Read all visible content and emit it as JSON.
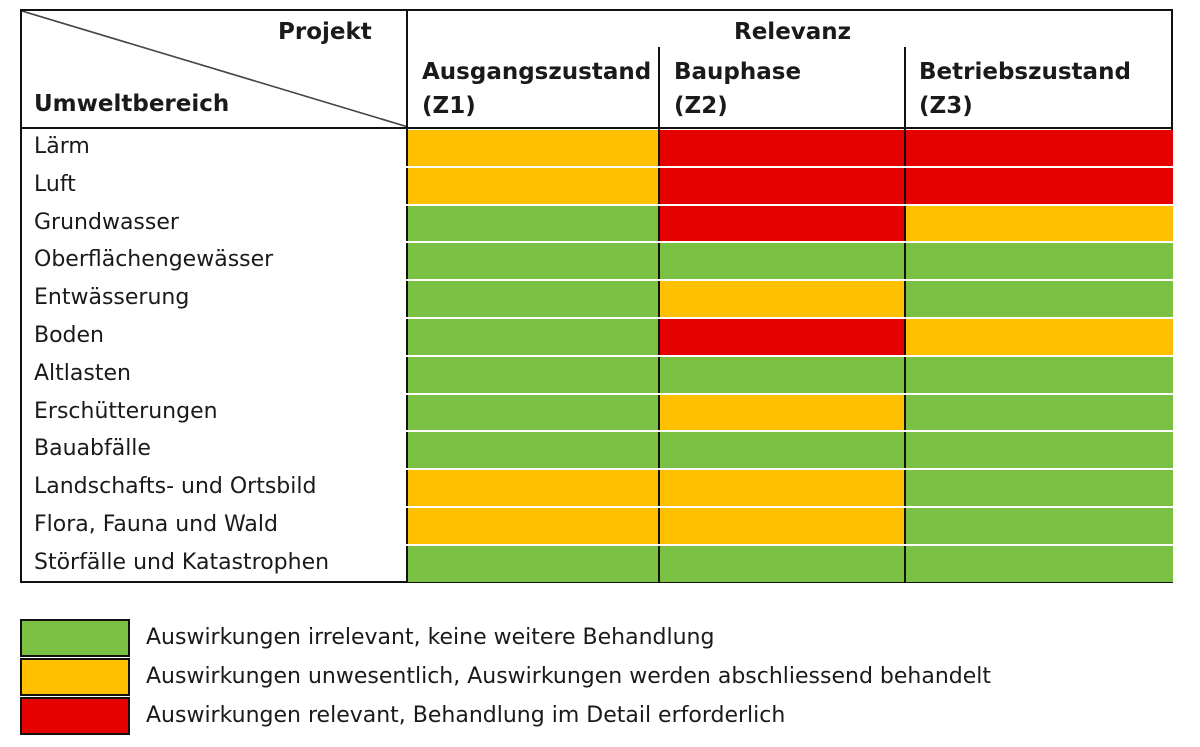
{
  "header": {
    "project": "Projekt",
    "relevance": "Relevanz",
    "domain": "Umweltbereich",
    "columns": [
      {
        "line1": "Ausgangszustand",
        "line2": "(Z1)"
      },
      {
        "line1": "Bauphase",
        "line2": "(Z2)"
      },
      {
        "line1": "Betriebszustand",
        "line2": "(Z3)"
      }
    ]
  },
  "colors": {
    "green": "#7ac143",
    "orange": "#ffc000",
    "red": "#e50000"
  },
  "rows": [
    {
      "label": "Lärm",
      "values": [
        "orange",
        "red",
        "red"
      ]
    },
    {
      "label": "Luft",
      "values": [
        "orange",
        "red",
        "red"
      ]
    },
    {
      "label": "Grundwasser",
      "values": [
        "green",
        "red",
        "orange"
      ]
    },
    {
      "label": "Oberflächengewässer",
      "values": [
        "green",
        "green",
        "green"
      ]
    },
    {
      "label": "Entwässerung",
      "values": [
        "green",
        "orange",
        "green"
      ]
    },
    {
      "label": "Boden",
      "values": [
        "green",
        "red",
        "orange"
      ]
    },
    {
      "label": "Altlasten",
      "values": [
        "green",
        "green",
        "green"
      ]
    },
    {
      "label": "Erschütterungen",
      "values": [
        "green",
        "orange",
        "green"
      ]
    },
    {
      "label": "Bauabfälle",
      "values": [
        "green",
        "green",
        "green"
      ]
    },
    {
      "label": "Landschafts- und Ortsbild",
      "values": [
        "orange",
        "orange",
        "green"
      ]
    },
    {
      "label": "Flora, Fauna und Wald",
      "values": [
        "orange",
        "orange",
        "green"
      ]
    },
    {
      "label": "Störfälle und Katastrophen",
      "values": [
        "green",
        "green",
        "green"
      ]
    }
  ],
  "legend": [
    {
      "color": "green",
      "label": "Auswirkungen irrelevant, keine weitere Behandlung"
    },
    {
      "color": "orange",
      "label": "Auswirkungen unwesentlich, Auswirkungen werden abschliessend behandelt"
    },
    {
      "color": "red",
      "label": "Auswirkungen relevant, Behandlung im Detail erforderlich"
    }
  ]
}
